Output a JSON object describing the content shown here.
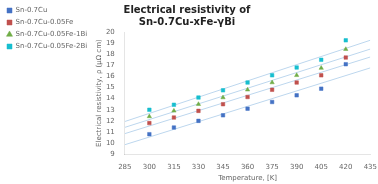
{
  "chart_data": {
    "type": "scatter",
    "title": [
      "Electrical resistivity of",
      "Sn-0.7Cu-xFe-γBi"
    ],
    "xlabel": "Temperature, [K]",
    "ylabel": "Electrical resistivity, ρ (μΩ cm)",
    "xlim": [
      285,
      435
    ],
    "ylim": [
      9,
      20
    ],
    "xticks": [
      285,
      300,
      315,
      330,
      345,
      360,
      375,
      390,
      405,
      420,
      435
    ],
    "yticks": [
      9,
      10,
      11,
      12,
      13,
      14,
      15,
      16,
      17,
      18,
      19,
      20
    ],
    "grid": false,
    "legend": "upper left",
    "series": [
      {
        "type": "line",
        "color": "#BDD7EE",
        "line_style": "solid",
        "x": [
          285,
          435
        ],
        "values": [
          9.852778,
          16.769444
        ]
      },
      {
        "name": "Sn-0.7Cu",
        "color": "#4472C4",
        "marker": "square",
        "x": [
          300,
          315,
          330,
          345,
          360,
          375,
          390,
          405,
          420
        ],
        "values": [
          10.8,
          11.4,
          12.0,
          12.5,
          13.1,
          13.7,
          14.3,
          14.9,
          17.1
        ]
      },
      {
        "type": "line",
        "color": "#BDD7EE",
        "line_style": "solid",
        "x": [
          285,
          435
        ],
        "values": [
          10.85,
          17.75
        ]
      },
      {
        "name": "Sn-0.7Cu-0.05Fe",
        "color": "#C0504D",
        "marker": "square",
        "x": [
          300,
          315,
          330,
          345,
          360,
          375,
          390,
          405,
          420
        ],
        "values": [
          11.8,
          12.3,
          12.9,
          13.5,
          14.15,
          14.8,
          15.45,
          16.1,
          17.7
        ]
      },
      {
        "type": "line",
        "color": "#BDD7EE",
        "line_style": "solid",
        "x": [
          285,
          435
        ],
        "values": [
          11.413889,
          18.463889
        ]
      },
      {
        "name": "Sn-0.7Cu-0.05Fe-1Bi",
        "color": "#70AD47",
        "marker": "triangle",
        "x": [
          300,
          315,
          330,
          345,
          360,
          375,
          390,
          405,
          420
        ],
        "values": [
          12.4,
          12.9,
          13.5,
          14.1,
          14.8,
          15.45,
          16.1,
          16.75,
          18.45
        ]
      },
      {
        "type": "line",
        "color": "#BDD7EE",
        "line_style": "solid",
        "x": [
          285,
          435
        ],
        "values": [
          11.941667,
          19.258333
        ]
      },
      {
        "name": "Sn-0.7Cu-0.05Fe-2Bi",
        "color": "#17BECF",
        "marker": "square",
        "x": [
          300,
          315,
          330,
          345,
          360,
          375,
          390,
          405,
          420
        ],
        "values": [
          13.0,
          13.45,
          14.1,
          14.75,
          15.45,
          16.1,
          16.8,
          17.5,
          19.25
        ]
      }
    ]
  }
}
